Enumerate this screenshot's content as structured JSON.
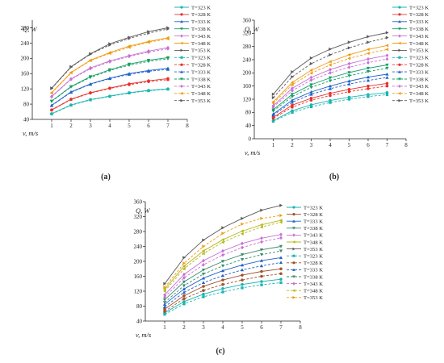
{
  "panels": [
    {
      "label": "(a)",
      "chart_data": {
        "type": "line",
        "xlabel": "v, m/s",
        "ylabel": "Q, W",
        "xlim": [
          0,
          8
        ],
        "ylim": [
          40,
          300
        ],
        "xticks": [
          1,
          2,
          3,
          4,
          5,
          6,
          7,
          8
        ],
        "yticks": [
          40,
          80,
          120,
          160,
          200,
          240,
          280
        ],
        "legend_position": "right",
        "x": [
          1,
          2,
          3,
          4,
          5,
          6,
          7
        ],
        "series": [
          {
            "name": "T=323 K",
            "style": "solid",
            "marker": "circle",
            "color": "#1ab5b0",
            "values": [
              55,
              78,
              92,
              101,
              110,
              116,
              120
            ]
          },
          {
            "name": "T=328 K",
            "style": "solid",
            "marker": "circle",
            "color": "#e8302c",
            "values": [
              65,
              93,
              110,
              122,
              133,
              141,
              147
            ]
          },
          {
            "name": "T=333 K",
            "style": "solid",
            "marker": "triangle",
            "color": "#1f62c9",
            "values": [
              77,
              112,
              133,
              148,
              160,
              168,
              174
            ]
          },
          {
            "name": "T=338 K",
            "style": "solid",
            "marker": "triangle-down",
            "color": "#129d63",
            "values": [
              88,
              126,
              152,
              170,
              185,
              195,
              202
            ]
          },
          {
            "name": "T=343 K",
            "style": "solid",
            "marker": "diamond",
            "color": "#c86fd6",
            "values": [
              100,
              146,
              175,
              193,
              207,
              219,
              228
            ]
          },
          {
            "name": "T=348 K",
            "style": "solid",
            "marker": "triangle-left",
            "color": "#f09b12",
            "values": [
              110,
              163,
              195,
              215,
              232,
              244,
              254
            ]
          },
          {
            "name": "T=353 K",
            "style": "solid",
            "marker": "triangle-right",
            "color": "#5a5a5a",
            "values": [
              122,
              178,
              212,
              238,
              255,
              270,
              280
            ]
          },
          {
            "name": "T=323 K",
            "style": "dashed",
            "marker": "square",
            "color": "#1ab5b0",
            "values": [
              54,
              77,
              91,
              100,
              109,
              115,
              119
            ]
          },
          {
            "name": "T=328 K",
            "style": "dashed",
            "marker": "circle",
            "color": "#e8302c",
            "values": [
              64,
              92,
              109,
              121,
              131,
              139,
              144
            ]
          },
          {
            "name": "T=333 K",
            "style": "dashed",
            "marker": "triangle",
            "color": "#1f62c9",
            "values": [
              76,
              111,
              132,
              147,
              158,
              166,
              171
            ]
          },
          {
            "name": "T=338 K",
            "style": "dashed",
            "marker": "triangle-down",
            "color": "#129d63",
            "values": [
              87,
              125,
              150,
              168,
              182,
              192,
              199
            ]
          },
          {
            "name": "T=343 K",
            "style": "dashed",
            "marker": "diamond",
            "color": "#c86fd6",
            "values": [
              99,
              145,
              173,
              191,
              205,
              216,
              225
            ]
          },
          {
            "name": "T=348 K",
            "style": "dashed",
            "marker": "triangle-left",
            "color": "#f09b12",
            "values": [
              109,
              162,
              194,
              213,
              229,
              242,
              251
            ]
          },
          {
            "name": "T=353 K",
            "style": "dashed",
            "marker": "triangle-right",
            "color": "#5a5a5a",
            "values": [
              121,
              177,
              211,
              235,
              252,
              266,
              277
            ]
          }
        ]
      }
    },
    {
      "label": "(b)",
      "chart_data": {
        "type": "line",
        "xlabel": "v, m/s",
        "ylabel": "Q, W",
        "xlim": [
          0,
          8
        ],
        "ylim": [
          0,
          360
        ],
        "xticks": [
          1,
          2,
          3,
          4,
          5,
          6,
          7,
          8
        ],
        "yticks": [
          0,
          40,
          80,
          120,
          160,
          200,
          240,
          280,
          320,
          360
        ],
        "legend_position": "right",
        "x": [
          1,
          2,
          3,
          4,
          5,
          6,
          7
        ],
        "series": [
          {
            "name": "T=323 K",
            "style": "solid",
            "marker": "circle",
            "color": "#1ab5b0",
            "values": [
              55,
              85,
              103,
              116,
              126,
              134,
              140
            ]
          },
          {
            "name": "T=328 K",
            "style": "solid",
            "marker": "circle",
            "color": "#e8302c",
            "values": [
              65,
              102,
              123,
              138,
              150,
              160,
              168
            ]
          },
          {
            "name": "T=333 K",
            "style": "solid",
            "marker": "triangle",
            "color": "#1f62c9",
            "values": [
              75,
              117,
              142,
              160,
              175,
              187,
              196
            ]
          },
          {
            "name": "T=338 K",
            "style": "solid",
            "marker": "triangle-down",
            "color": "#129d63",
            "values": [
              88,
              135,
              164,
              185,
              201,
              214,
              224
            ]
          },
          {
            "name": "T=343 K",
            "style": "solid",
            "marker": "diamond",
            "color": "#c86fd6",
            "values": [
              100,
              153,
              186,
              210,
              228,
              242,
              253
            ]
          },
          {
            "name": "T=348 K",
            "style": "solid",
            "marker": "triangle-left",
            "color": "#f09b12",
            "values": [
              112,
              171,
              208,
              234,
              255,
              271,
              283
            ]
          },
          {
            "name": "T=353 K",
            "style": "solid",
            "marker": "triangle-right",
            "color": "#5a5a5a",
            "values": [
              135,
              203,
              245,
              272,
              293,
              310,
              322
            ]
          },
          {
            "name": "T=323 K",
            "style": "dashed",
            "marker": "square",
            "color": "#1ab5b0",
            "values": [
              53,
              80,
              97,
              110,
              120,
              128,
              134
            ]
          },
          {
            "name": "T=328 K",
            "style": "dashed",
            "marker": "circle",
            "color": "#e8302c",
            "values": [
              62,
              96,
              117,
              131,
              143,
              152,
              160
            ]
          },
          {
            "name": "T=333 K",
            "style": "dashed",
            "marker": "triangle",
            "color": "#1f62c9",
            "values": [
              72,
              111,
              135,
              152,
              166,
              177,
              186
            ]
          },
          {
            "name": "T=338 K",
            "style": "dashed",
            "marker": "triangle-down",
            "color": "#129d63",
            "values": [
              84,
              128,
              156,
              176,
              191,
              204,
              214
            ]
          },
          {
            "name": "T=343 K",
            "style": "dashed",
            "marker": "diamond",
            "color": "#c86fd6",
            "values": [
              96,
              146,
              178,
              200,
              217,
              231,
              242
            ]
          },
          {
            "name": "T=348 K",
            "style": "dashed",
            "marker": "triangle-left",
            "color": "#f09b12",
            "values": [
              108,
              164,
              199,
              224,
              244,
              259,
              271
            ]
          },
          {
            "name": "T=353 K",
            "style": "dashed",
            "marker": "triangle-right",
            "color": "#5a5a5a",
            "values": [
              125,
              188,
              228,
              255,
              276,
              293,
              307
            ]
          }
        ]
      }
    },
    {
      "label": "(c)",
      "chart_data": {
        "type": "line",
        "xlabel": "v, m/s",
        "ylabel": "Q, W",
        "xlim": [
          0,
          8
        ],
        "ylim": [
          40,
          360
        ],
        "xticks": [
          1,
          2,
          3,
          4,
          5,
          6,
          7,
          8
        ],
        "yticks": [
          40,
          80,
          120,
          160,
          200,
          240,
          280,
          320,
          360
        ],
        "legend_position": "right",
        "x": [
          1,
          2,
          3,
          4,
          5,
          6,
          7
        ],
        "series": [
          {
            "name": "T=323 K",
            "style": "solid",
            "marker": "circle",
            "color": "#1ab5b0",
            "values": [
              62,
              92,
              112,
              127,
              138,
              146,
              152
            ]
          },
          {
            "name": "T=328 K",
            "style": "solid",
            "marker": "circle",
            "color": "#a0522d",
            "values": [
              72,
              108,
              133,
              150,
              163,
              173,
              180
            ]
          },
          {
            "name": "T=333 K",
            "style": "solid",
            "marker": "triangle",
            "color": "#1f62c9",
            "values": [
              85,
              126,
              155,
              175,
              190,
              202,
              210
            ]
          },
          {
            "name": "T=338 K",
            "style": "solid",
            "marker": "triangle-down",
            "color": "#3c8c6e",
            "values": [
              97,
              145,
              177,
              200,
              218,
              231,
              240
            ]
          },
          {
            "name": "T=343 K",
            "style": "solid",
            "marker": "diamond",
            "color": "#c86fd6",
            "values": [
              110,
              165,
              202,
              228,
              248,
              262,
              272
            ]
          },
          {
            "name": "T=348 K",
            "style": "solid",
            "marker": "triangle-left",
            "color": "#b5b81a",
            "values": [
              125,
              187,
              228,
              258,
              281,
              298,
              310
            ]
          },
          {
            "name": "T=353 K",
            "style": "solid",
            "marker": "triangle-right",
            "color": "#5a5a5a",
            "values": [
              140,
              210,
              257,
              290,
              315,
              337,
              350
            ]
          },
          {
            "name": "T=323 K",
            "style": "dashed",
            "marker": "square",
            "color": "#1ab5b0",
            "values": [
              58,
              86,
              105,
              118,
              129,
              137,
              143
            ]
          },
          {
            "name": "T=328 K",
            "style": "dashed",
            "marker": "circle",
            "color": "#a0522d",
            "values": [
              66,
              100,
              122,
              138,
              150,
              160,
              167
            ]
          },
          {
            "name": "T=333 K",
            "style": "dashed",
            "marker": "triangle",
            "color": "#1f62c9",
            "values": [
              78,
              117,
              143,
              162,
              177,
              188,
              197
            ]
          },
          {
            "name": "T=338 K",
            "style": "dashed",
            "marker": "triangle-down",
            "color": "#3c8c6e",
            "values": [
              90,
              135,
              166,
              188,
              205,
              218,
              228
            ]
          },
          {
            "name": "T=343 K",
            "style": "dashed",
            "marker": "diamond",
            "color": "#c86fd6",
            "values": [
              104,
              156,
              191,
              217,
              237,
              252,
              263
            ]
          },
          {
            "name": "T=348 K",
            "style": "dashed",
            "marker": "triangle-left",
            "color": "#b5b81a",
            "values": [
              120,
              180,
              221,
              251,
              274,
              292,
              305
            ]
          },
          {
            "name": "T=353 K",
            "style": "dashed",
            "marker": "triangle-right",
            "color": "#f09b12",
            "values": [
              130,
              195,
              240,
              275,
              300,
              315,
              323
            ]
          }
        ]
      }
    }
  ]
}
